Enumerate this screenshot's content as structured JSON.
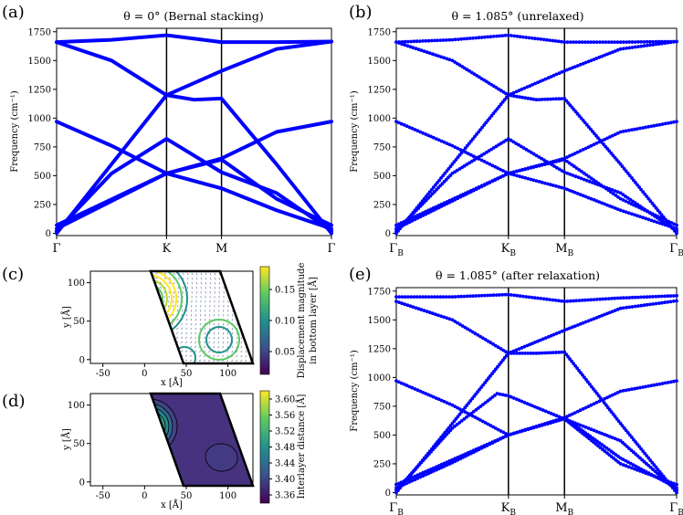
{
  "panel_labels": {
    "a": "(a)",
    "b": "(b)",
    "c": "(c)",
    "d": "(d)",
    "e": "(e)"
  },
  "colors": {
    "band": "#0000ff",
    "line": "#000000",
    "contour_dark": "#440154",
    "contour_bright": "#fde725"
  },
  "chart_data": [
    {
      "panel": "a",
      "type": "line",
      "title": "θ = 0° (Bernal stacking)",
      "ylabel": "Frequency (cm⁻¹)",
      "ylim": [
        -20,
        1780
      ],
      "yticks": [
        0,
        250,
        500,
        750,
        1000,
        1250,
        1500,
        1750
      ],
      "x_tick_labels": [
        "Γ",
        "K",
        "M",
        "Γ"
      ],
      "path_ticks": [
        0,
        1,
        1.5,
        2.5
      ],
      "series": [
        {
          "values": [
            [
              0,
              1660
            ],
            [
              0.5,
              1680
            ],
            [
              1,
              1720
            ],
            [
              1.5,
              1660
            ],
            [
              2,
              1660
            ],
            [
              2.5,
              1665
            ]
          ]
        },
        {
          "values": [
            [
              0,
              1660
            ],
            [
              0.5,
              1500
            ],
            [
              1,
              1200
            ],
            [
              1.5,
              1410
            ],
            [
              2,
              1600
            ],
            [
              2.5,
              1665
            ]
          ]
        },
        {
          "values": [
            [
              0,
              970
            ],
            [
              0.5,
              760
            ],
            [
              1,
              520
            ],
            [
              1.5,
              650
            ],
            [
              2,
              880
            ],
            [
              2.5,
              970
            ]
          ]
        },
        {
          "values": [
            [
              0,
              0
            ],
            [
              0.5,
              600
            ],
            [
              1,
              1200
            ],
            [
              1.25,
              1160
            ],
            [
              1.5,
              1170
            ],
            [
              2,
              600
            ],
            [
              2.5,
              0
            ]
          ]
        },
        {
          "values": [
            [
              0,
              20
            ],
            [
              0.5,
              520
            ],
            [
              1,
              820
            ],
            [
              1.5,
              530
            ],
            [
              2,
              350
            ],
            [
              2.5,
              20
            ]
          ]
        },
        {
          "values": [
            [
              0,
              40
            ],
            [
              0.5,
              280
            ],
            [
              1,
              520
            ],
            [
              1.5,
              390
            ],
            [
              2,
              200
            ],
            [
              2.5,
              40
            ]
          ]
        },
        {
          "values": [
            [
              0,
              70
            ],
            [
              1,
              520
            ],
            [
              1.5,
              640
            ],
            [
              2,
              300
            ],
            [
              2.5,
              70
            ]
          ]
        }
      ]
    },
    {
      "panel": "b",
      "type": "scatter",
      "title": "θ = 1.085° (unrelaxed)",
      "ylabel": "Frequency (cm⁻¹)",
      "ylim": [
        -20,
        1780
      ],
      "yticks": [
        0,
        250,
        500,
        750,
        1000,
        1250,
        1500,
        1750
      ],
      "x_tick_labels": [
        "Γ_B",
        "K_B",
        "M_B",
        "Γ_B"
      ],
      "path_ticks": [
        0,
        1,
        1.5,
        2.5
      ],
      "series": [
        {
          "values": [
            [
              0,
              1660
            ],
            [
              0.5,
              1680
            ],
            [
              1,
              1720
            ],
            [
              1.5,
              1660
            ],
            [
              2,
              1660
            ],
            [
              2.5,
              1665
            ]
          ]
        },
        {
          "values": [
            [
              0,
              1660
            ],
            [
              0.5,
              1500
            ],
            [
              1,
              1200
            ],
            [
              1.5,
              1410
            ],
            [
              2,
              1600
            ],
            [
              2.5,
              1665
            ]
          ]
        },
        {
          "values": [
            [
              0,
              970
            ],
            [
              0.5,
              760
            ],
            [
              1,
              520
            ],
            [
              1.5,
              650
            ],
            [
              2,
              880
            ],
            [
              2.5,
              970
            ]
          ]
        },
        {
          "values": [
            [
              0,
              0
            ],
            [
              0.5,
              600
            ],
            [
              1,
              1200
            ],
            [
              1.25,
              1160
            ],
            [
              1.5,
              1170
            ],
            [
              2,
              600
            ],
            [
              2.5,
              0
            ]
          ]
        },
        {
          "values": [
            [
              0,
              20
            ],
            [
              0.5,
              520
            ],
            [
              1,
              820
            ],
            [
              1.5,
              530
            ],
            [
              2,
              350
            ],
            [
              2.5,
              20
            ]
          ]
        },
        {
          "values": [
            [
              0,
              40
            ],
            [
              0.5,
              280
            ],
            [
              1,
              520
            ],
            [
              1.5,
              390
            ],
            [
              2,
              200
            ],
            [
              2.5,
              40
            ]
          ]
        },
        {
          "values": [
            [
              0,
              70
            ],
            [
              1,
              520
            ],
            [
              1.5,
              640
            ],
            [
              2,
              300
            ],
            [
              2.5,
              70
            ]
          ]
        }
      ]
    },
    {
      "panel": "c",
      "type": "heatmap",
      "xlabel": "x [Å]",
      "ylabel": "y [Å]",
      "xticks": [
        -50,
        0,
        50,
        100
      ],
      "yticks": [
        0,
        50,
        100
      ],
      "colorbar_label": "Displacement magnitude in bottom layer [Å]",
      "colorbar_ticks": [
        "0.05",
        "0.10",
        "0.15"
      ]
    },
    {
      "panel": "d",
      "type": "heatmap",
      "xlabel": "x [Å]",
      "ylabel": "y [Å]",
      "xticks": [
        -50,
        0,
        50,
        100
      ],
      "yticks": [
        0,
        50,
        100
      ],
      "colorbar_label": "Interlayer distance [Å]",
      "colorbar_ticks": [
        "3.36",
        "3.40",
        "3.44",
        "3.48",
        "3.52",
        "3.56",
        "3.60"
      ]
    },
    {
      "panel": "e",
      "type": "scatter",
      "title": "θ = 1.085° (after relaxation)",
      "ylabel": "Frequency (cm⁻¹)",
      "ylim": [
        -20,
        1780
      ],
      "yticks": [
        0,
        250,
        500,
        750,
        1000,
        1250,
        1500,
        1750
      ],
      "x_tick_labels": [
        "Γ_B",
        "K_B",
        "M_B",
        "Γ_B"
      ],
      "path_ticks": [
        0,
        1,
        1.5,
        2.5
      ],
      "series": [
        {
          "values": [
            [
              0,
              1700
            ],
            [
              0.5,
              1700
            ],
            [
              1,
              1720
            ],
            [
              1.5,
              1660
            ],
            [
              2,
              1690
            ],
            [
              2.5,
              1710
            ]
          ]
        },
        {
          "values": [
            [
              0,
              1660
            ],
            [
              0.5,
              1500
            ],
            [
              1,
              1210
            ],
            [
              1.5,
              1410
            ],
            [
              2,
              1600
            ],
            [
              2.5,
              1665
            ]
          ]
        },
        {
          "values": [
            [
              0,
              970
            ],
            [
              0.5,
              760
            ],
            [
              1,
              500
            ],
            [
              1.5,
              650
            ],
            [
              2,
              880
            ],
            [
              2.5,
              970
            ]
          ]
        },
        {
          "values": [
            [
              0,
              0
            ],
            [
              0.5,
              600
            ],
            [
              1,
              1210
            ],
            [
              1.25,
              1210
            ],
            [
              1.5,
              1220
            ],
            [
              2,
              600
            ],
            [
              2.5,
              0
            ]
          ]
        },
        {
          "values": [
            [
              0,
              20
            ],
            [
              0.5,
              560
            ],
            [
              0.9,
              860
            ],
            [
              1,
              840
            ],
            [
              1.5,
              640
            ],
            [
              2,
              450
            ],
            [
              2.5,
              20
            ]
          ]
        },
        {
          "values": [
            [
              0,
              40
            ],
            [
              0.5,
              260
            ],
            [
              1,
              500
            ],
            [
              1.5,
              650
            ],
            [
              2,
              300
            ],
            [
              2.5,
              40
            ]
          ]
        },
        {
          "values": [
            [
              0,
              70
            ],
            [
              1,
              500
            ],
            [
              1.5,
              640
            ],
            [
              2,
              250
            ],
            [
              2.5,
              70
            ]
          ]
        }
      ]
    }
  ]
}
